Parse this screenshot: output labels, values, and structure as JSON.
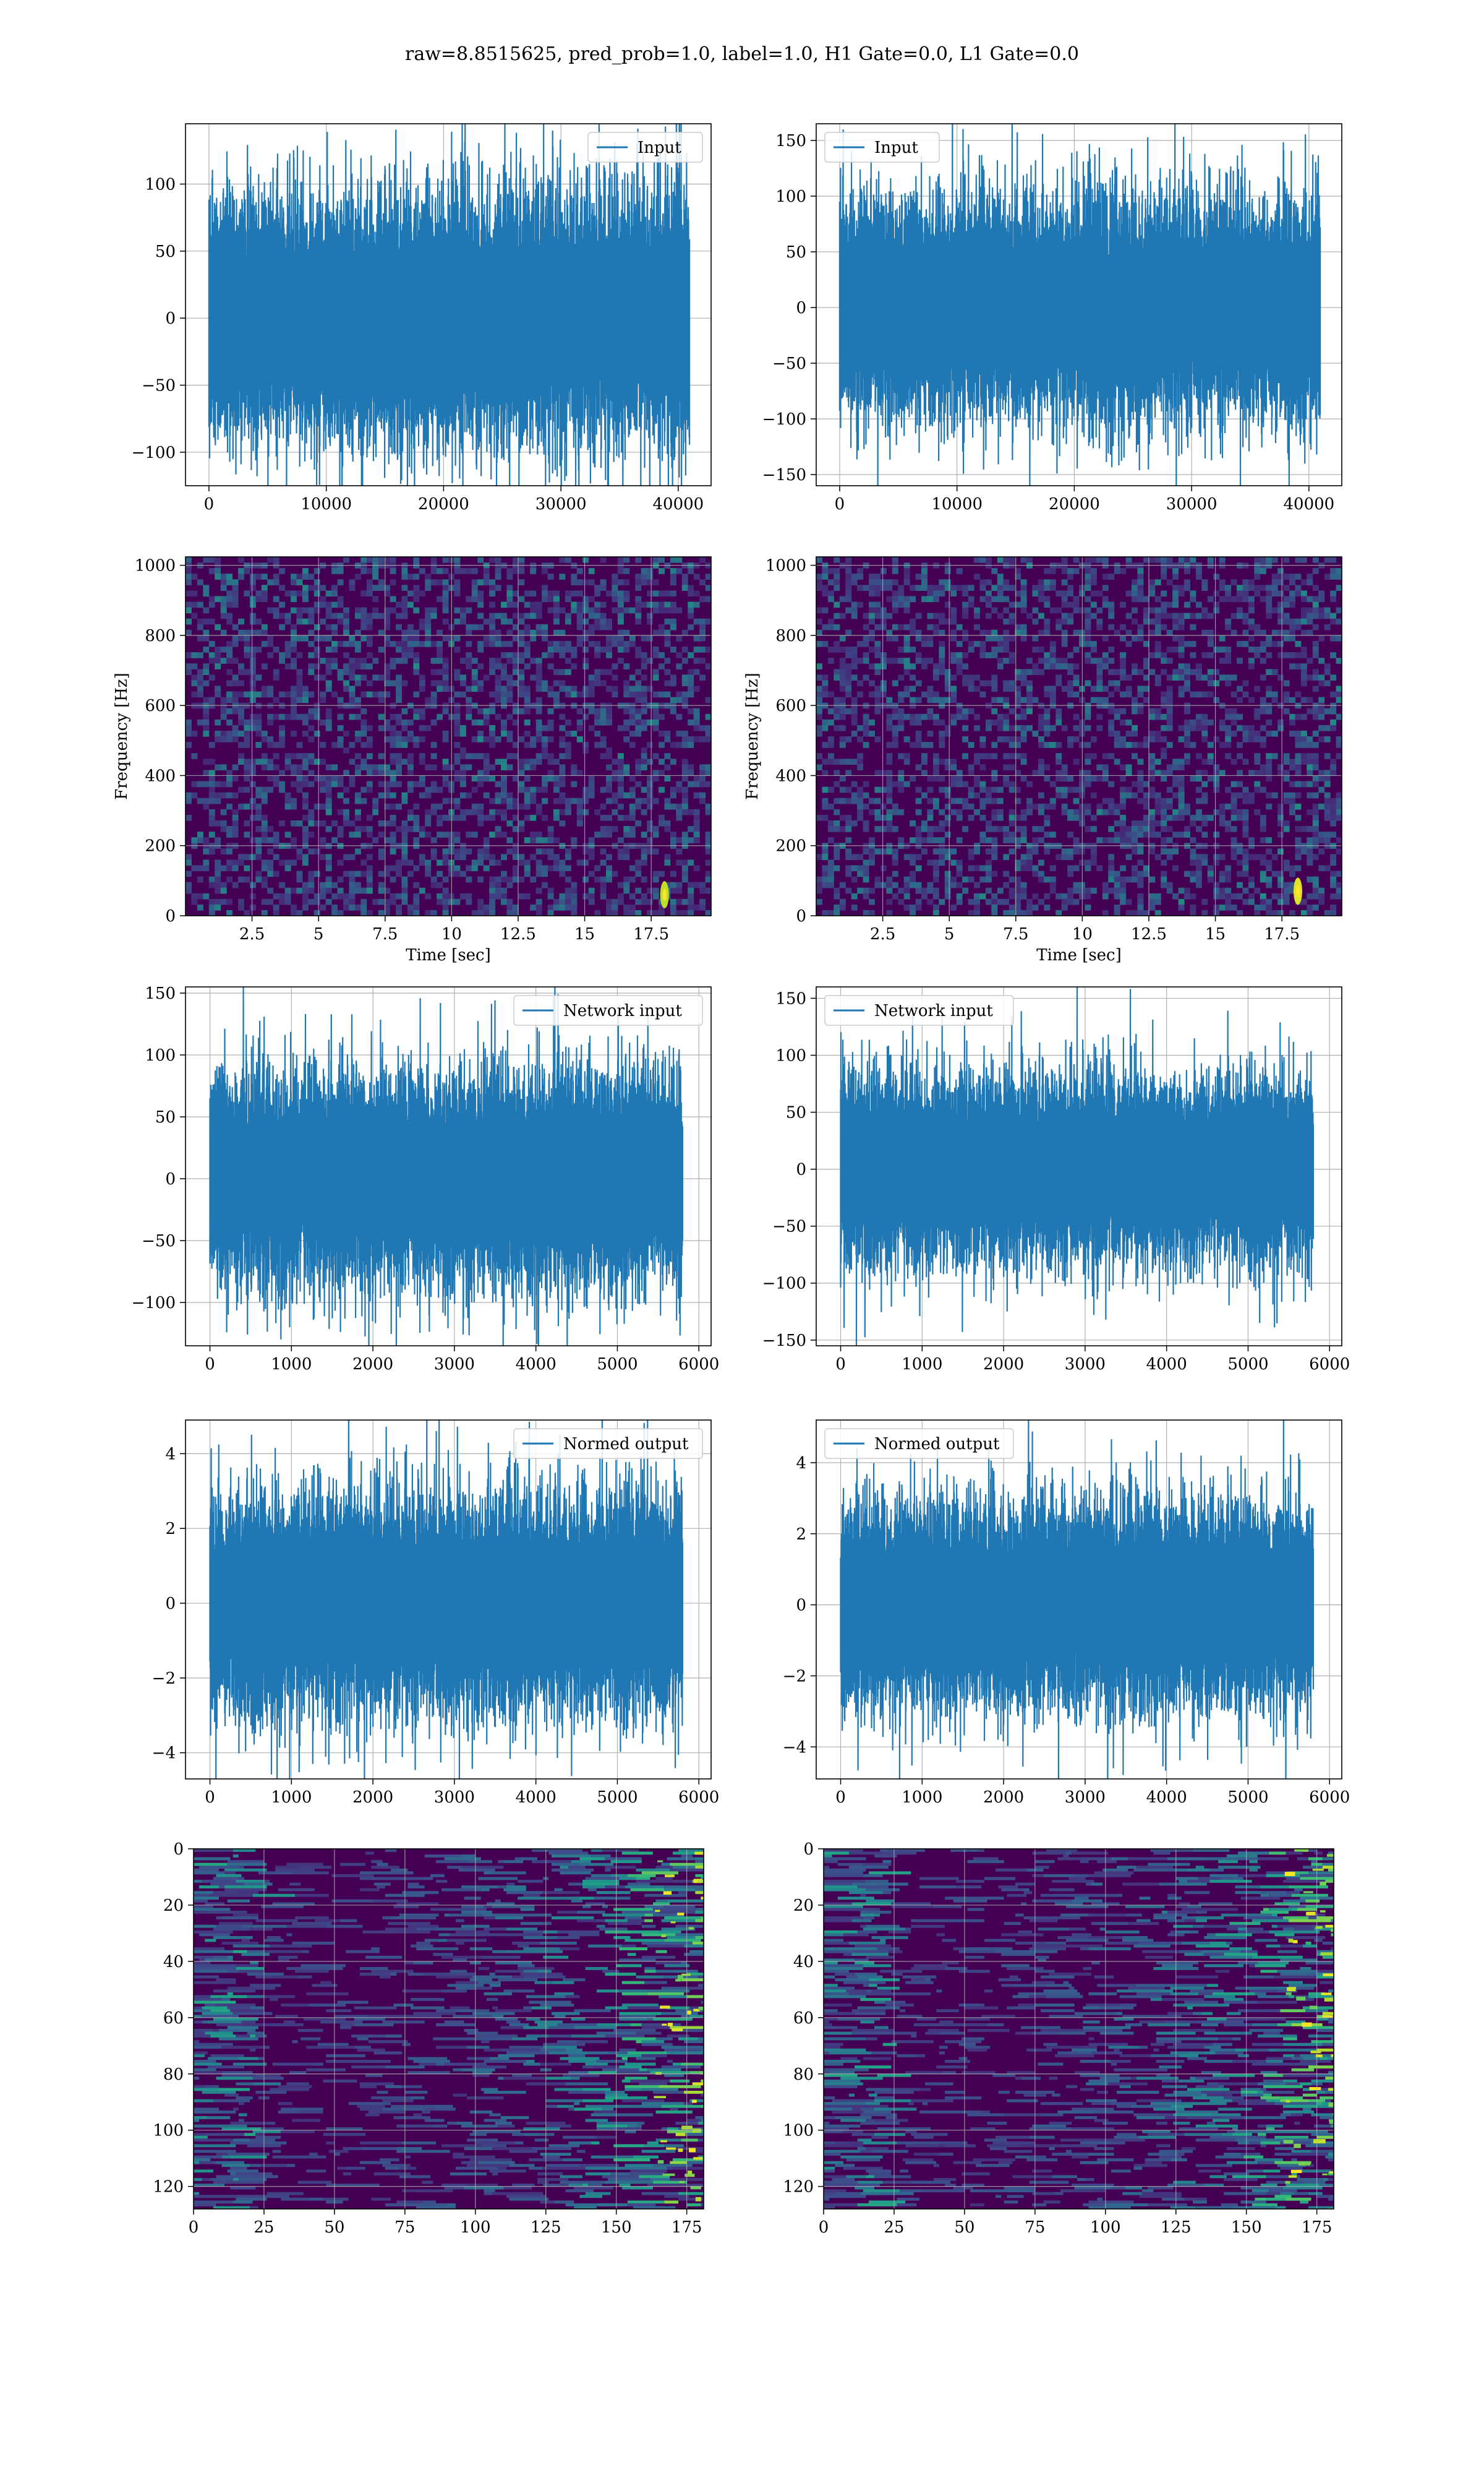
{
  "figure": {
    "title": "raw=8.8515625, pred_prob=1.0, label=1.0, H1 Gate=0.0, L1 Gate=0.0"
  },
  "colors": {
    "line": "#1f77b4",
    "grid": "#b0b0b0",
    "viridis_dark": "#440154",
    "viridis_mid": "#21918c",
    "viridis_bright": "#fde725"
  },
  "chart_data": [
    {
      "id": "input-h1",
      "type": "line",
      "signal": "noise",
      "xlim": [
        -2000,
        42800
      ],
      "ylim": [
        -125,
        145
      ],
      "n": 40960,
      "amp": 31,
      "xticks": [
        0,
        10000,
        20000,
        30000,
        40000
      ],
      "yticks": [
        -100,
        -50,
        0,
        50,
        100
      ],
      "legend": "Input",
      "legend_loc": "upper right",
      "title": "",
      "xlabel": "",
      "ylabel": ""
    },
    {
      "id": "input-l1",
      "type": "line",
      "signal": "noise",
      "xlim": [
        -2000,
        42800
      ],
      "ylim": [
        -160,
        165
      ],
      "n": 40960,
      "amp": 32,
      "xticks": [
        0,
        10000,
        20000,
        30000,
        40000
      ],
      "yticks": [
        -150,
        -100,
        -50,
        0,
        50,
        100,
        150
      ],
      "legend": "Input",
      "legend_loc": "upper left",
      "title": "",
      "xlabel": "",
      "ylabel": ""
    },
    {
      "id": "spec-h1",
      "type": "heatmap",
      "cmap": "viridis",
      "xlim": [
        0,
        19.75
      ],
      "ylim": [
        0,
        1024
      ],
      "xticks": [
        2.5,
        5.0,
        7.5,
        10.0,
        12.5,
        15.0,
        17.5
      ],
      "yticks": [
        0,
        200,
        400,
        600,
        800,
        1000
      ],
      "xlabel": "Time [sec]",
      "ylabel": "Frequency [Hz]",
      "hotspots": [
        {
          "x": 18.0,
          "y": 60,
          "z": 0.9
        }
      ]
    },
    {
      "id": "spec-l1",
      "type": "heatmap",
      "cmap": "viridis",
      "xlim": [
        0,
        19.75
      ],
      "ylim": [
        0,
        1024
      ],
      "xticks": [
        2.5,
        5.0,
        7.5,
        10.0,
        12.5,
        15.0,
        17.5
      ],
      "yticks": [
        0,
        200,
        400,
        600,
        800,
        1000
      ],
      "xlabel": "Time [sec]",
      "ylabel": "Frequency [Hz]",
      "hotspots": [
        {
          "x": 18.1,
          "y": 70,
          "z": 0.95
        }
      ]
    },
    {
      "id": "net-h1",
      "type": "line",
      "signal": "noise",
      "xlim": [
        -300,
        6150
      ],
      "ylim": [
        -135,
        155
      ],
      "n": 5800,
      "amp": 28,
      "xticks": [
        0,
        1000,
        2000,
        3000,
        4000,
        5000,
        6000
      ],
      "yticks": [
        -100,
        -50,
        0,
        50,
        100,
        150
      ],
      "legend": "Network input",
      "legend_loc": "upper right",
      "title": "",
      "xlabel": "",
      "ylabel": ""
    },
    {
      "id": "net-l1",
      "type": "line",
      "signal": "noise",
      "xlim": [
        -300,
        6150
      ],
      "ylim": [
        -155,
        160
      ],
      "n": 5800,
      "amp": 27,
      "xticks": [
        0,
        1000,
        2000,
        3000,
        4000,
        5000,
        6000
      ],
      "yticks": [
        -150,
        -100,
        -50,
        0,
        50,
        100,
        150
      ],
      "legend": "Network input",
      "legend_loc": "upper left",
      "title": "",
      "xlabel": "",
      "ylabel": ""
    },
    {
      "id": "norm-h1",
      "type": "line",
      "signal": "noise",
      "xlim": [
        -300,
        6150
      ],
      "ylim": [
        -4.7,
        4.9
      ],
      "n": 5800,
      "amp": 0.95,
      "xticks": [
        0,
        1000,
        2000,
        3000,
        4000,
        5000,
        6000
      ],
      "yticks": [
        -4,
        -2,
        0,
        2,
        4
      ],
      "legend": "Normed output",
      "legend_loc": "upper right",
      "title": "",
      "xlabel": "",
      "ylabel": ""
    },
    {
      "id": "norm-l1",
      "type": "line",
      "signal": "noise",
      "xlim": [
        -300,
        6150
      ],
      "ylim": [
        -4.9,
        5.2
      ],
      "n": 5800,
      "amp": 0.95,
      "xticks": [
        0,
        1000,
        2000,
        3000,
        4000,
        5000,
        6000
      ],
      "yticks": [
        -4,
        -2,
        0,
        2,
        4
      ],
      "legend": "Normed output",
      "legend_loc": "upper left",
      "title": "",
      "xlabel": "",
      "ylabel": ""
    },
    {
      "id": "feat-h1",
      "type": "heatmap",
      "cmap": "viridis",
      "y_inverted": true,
      "xlim": [
        0,
        181
      ],
      "ylim": [
        128,
        0
      ],
      "xticks": [
        0,
        25,
        50,
        75,
        100,
        125,
        150,
        175
      ],
      "yticks": [
        0,
        20,
        40,
        60,
        80,
        100,
        120
      ],
      "xlabel": "",
      "ylabel": ""
    },
    {
      "id": "feat-l1",
      "type": "heatmap",
      "cmap": "viridis",
      "y_inverted": true,
      "xlim": [
        0,
        181
      ],
      "ylim": [
        128,
        0
      ],
      "xticks": [
        0,
        25,
        50,
        75,
        100,
        125,
        150,
        175
      ],
      "yticks": [
        0,
        20,
        40,
        60,
        80,
        100,
        120
      ],
      "xlabel": "",
      "ylabel": ""
    }
  ]
}
